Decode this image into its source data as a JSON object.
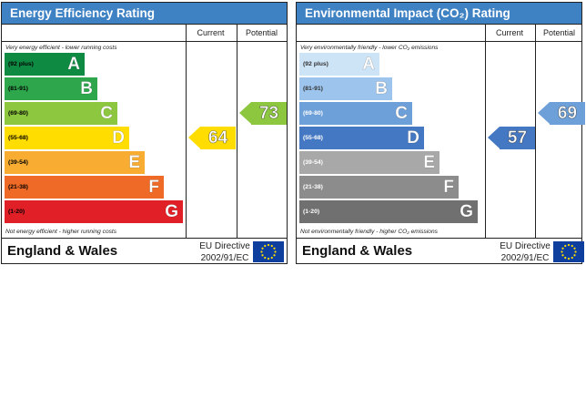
{
  "charts": [
    {
      "title": "Energy Efficiency Rating",
      "col_current": "Current",
      "col_potential": "Potential",
      "top_note": "Very energy efficient - lower running costs",
      "bottom_note": "Not energy efficient - higher running costs",
      "bands": [
        {
          "range": "(92 plus)",
          "letter": "A",
          "color": "#0f8a43",
          "text_color": "#000000"
        },
        {
          "range": "(81-91)",
          "letter": "B",
          "color": "#2ea64b",
          "text_color": "#000000"
        },
        {
          "range": "(69-80)",
          "letter": "C",
          "color": "#8dc63f",
          "text_color": "#000000"
        },
        {
          "range": "(55-68)",
          "letter": "D",
          "color": "#ffdd00",
          "text_color": "#000000"
        },
        {
          "range": "(39-54)",
          "letter": "E",
          "color": "#f8ad32",
          "text_color": "#000000"
        },
        {
          "range": "(21-38)",
          "letter": "F",
          "color": "#ef6a26",
          "text_color": "#000000"
        },
        {
          "range": "(1-20)",
          "letter": "G",
          "color": "#e11f26",
          "text_color": "#000000"
        }
      ],
      "current": {
        "value": "64",
        "band": "D",
        "color": "#ffdd00"
      },
      "potential": {
        "value": "73",
        "band": "C",
        "color": "#8dc63f"
      },
      "region": "England & Wales",
      "directive_line1": "EU Directive",
      "directive_line2": "2002/91/EC"
    },
    {
      "title": "Environmental Impact (CO₂) Rating",
      "col_current": "Current",
      "col_potential": "Potential",
      "top_note": "Very environmentally friendly - lower CO₂ emissions",
      "bottom_note": "Not environmentally friendly - higher CO₂ emissions",
      "bands": [
        {
          "range": "(92 plus)",
          "letter": "A",
          "color": "#cde3f6",
          "text_color": "#333333"
        },
        {
          "range": "(81-91)",
          "letter": "B",
          "color": "#9cc4ec",
          "text_color": "#333333"
        },
        {
          "range": "(69-80)",
          "letter": "C",
          "color": "#6d9fd8",
          "text_color": "#ffffff"
        },
        {
          "range": "(55-68)",
          "letter": "D",
          "color": "#4478c2",
          "text_color": "#ffffff"
        },
        {
          "range": "(39-54)",
          "letter": "E",
          "color": "#a8a8a8",
          "text_color": "#ffffff"
        },
        {
          "range": "(21-38)",
          "letter": "F",
          "color": "#8c8c8c",
          "text_color": "#ffffff"
        },
        {
          "range": "(1-20)",
          "letter": "G",
          "color": "#707070",
          "text_color": "#ffffff"
        }
      ],
      "current": {
        "value": "57",
        "band": "D",
        "color": "#4478c2"
      },
      "potential": {
        "value": "69",
        "band": "C",
        "color": "#6d9fd8"
      },
      "region": "England & Wales",
      "directive_line1": "EU Directive",
      "directive_line2": "2002/91/EC"
    }
  ]
}
